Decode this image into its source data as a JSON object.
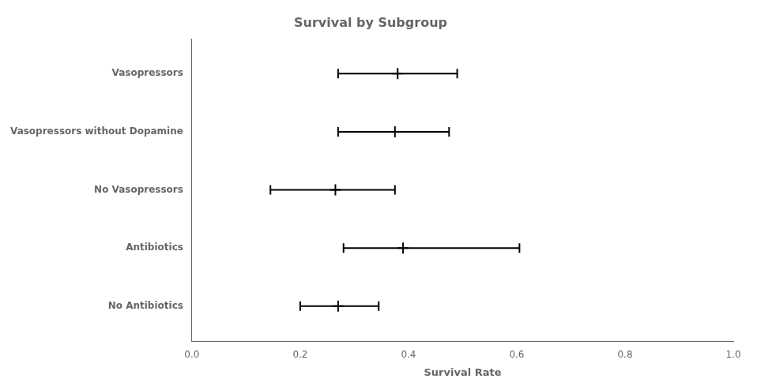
{
  "chart_data": {
    "type": "errorbar",
    "orientation": "horizontal",
    "title": "Survival by Subgroup",
    "xlabel": "Survival Rate",
    "categories": [
      "No Antibiotics",
      "Antibiotics",
      "No Vasopressors",
      "Vasopressors without Dopamine",
      "Vasopressors"
    ],
    "values": [
      0.27,
      0.39,
      0.265,
      0.375,
      0.38
    ],
    "ci_low": [
      0.2,
      0.28,
      0.145,
      0.27,
      0.27
    ],
    "ci_high": [
      0.345,
      0.605,
      0.375,
      0.475,
      0.49
    ],
    "color": "#000000",
    "marker": "plus",
    "xlim": [
      0.0,
      1.0
    ],
    "xticks": [
      {
        "value": 0.0,
        "label": "0.0"
      },
      0.2,
      0.4,
      0.6,
      0.8,
      {
        "value": 1.0,
        "label": "1.0"
      }
    ],
    "grid": false
  }
}
